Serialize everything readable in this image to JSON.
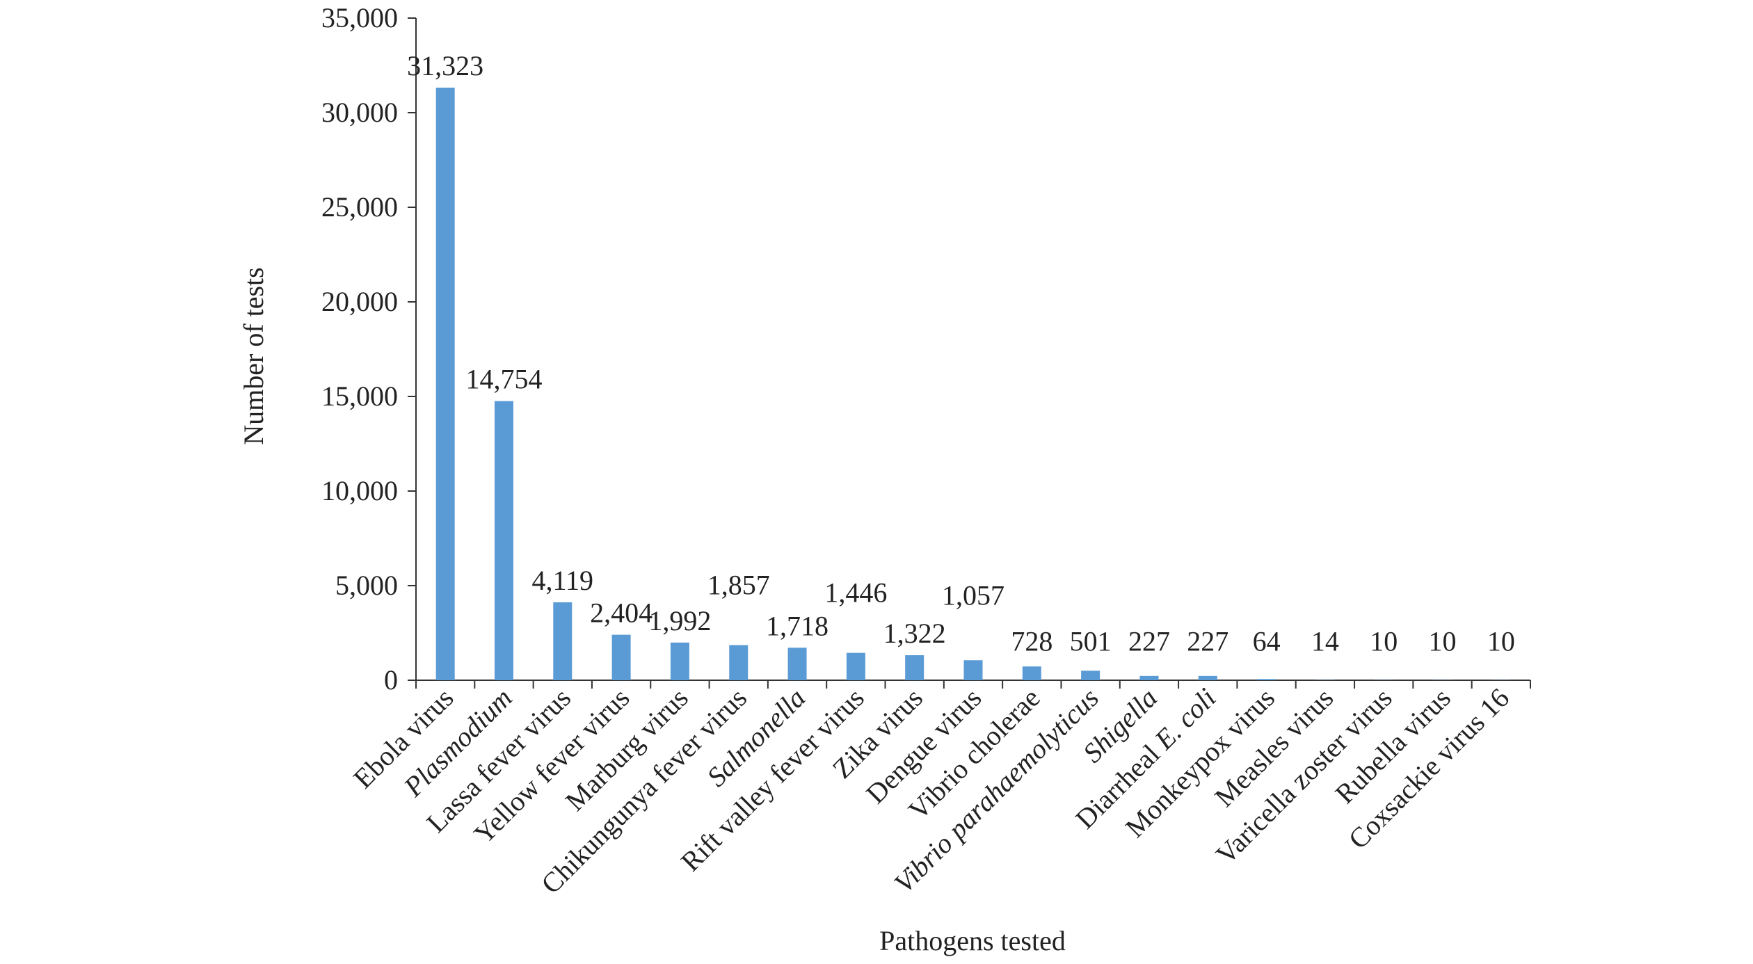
{
  "chart_data": {
    "type": "bar",
    "title": "",
    "xlabel": "Pathogens tested",
    "ylabel": "Number of tests",
    "ylim": [
      0,
      35000
    ],
    "yticks": [
      0,
      5000,
      10000,
      15000,
      20000,
      25000,
      30000,
      35000
    ],
    "ytick_labels": [
      "0",
      "5,000",
      "10,000",
      "15,000",
      "20,000",
      "25,000",
      "30,000",
      "35,000"
    ],
    "grid": false,
    "legend": "none",
    "bar_color": "#5b9bd5",
    "categories": [
      {
        "label": "Ebola virus",
        "italic": false
      },
      {
        "label": "Plasmodium",
        "italic": true
      },
      {
        "label": "Lassa fever virus",
        "italic": false
      },
      {
        "label": "Yellow fever virus",
        "italic": false
      },
      {
        "label": "Marburg virus",
        "italic": false
      },
      {
        "label": "Chikungunya fever virus",
        "italic": false
      },
      {
        "label": "Salmonella",
        "italic": true
      },
      {
        "label": "Rift valley fever virus",
        "italic": false
      },
      {
        "label": "Zika virus",
        "italic": false
      },
      {
        "label": "Dengue virus",
        "italic": false
      },
      {
        "label": "Vibrio cholerae",
        "italic": false
      },
      {
        "label": "Vibrio parahaemolyticus",
        "italic": true
      },
      {
        "label": "Shigella",
        "italic": true
      },
      {
        "label": "Diarrheal E. coli",
        "italic": false,
        "italic_suffix": "E. coli",
        "prefix": "Diarrheal "
      },
      {
        "label": "Monkeypox virus",
        "italic": false
      },
      {
        "label": "Measles virus",
        "italic": false
      },
      {
        "label": "Varicella zoster virus",
        "italic": false
      },
      {
        "label": "Rubella virus",
        "italic": false
      },
      {
        "label": "Coxsackie virus 16",
        "italic": false
      }
    ],
    "values": [
      31323,
      14754,
      4119,
      2404,
      1992,
      1857,
      1718,
      1446,
      1322,
      1057,
      728,
      501,
      227,
      227,
      64,
      14,
      10,
      10,
      10
    ],
    "value_labels": [
      "31,323",
      "14,754",
      "4,119",
      "2,404",
      "1,992",
      "1,857",
      "1,718",
      "1,446",
      "1,322",
      "1,057",
      "728",
      "501",
      "227",
      "227",
      "64",
      "14",
      "10",
      "10",
      "10"
    ]
  }
}
